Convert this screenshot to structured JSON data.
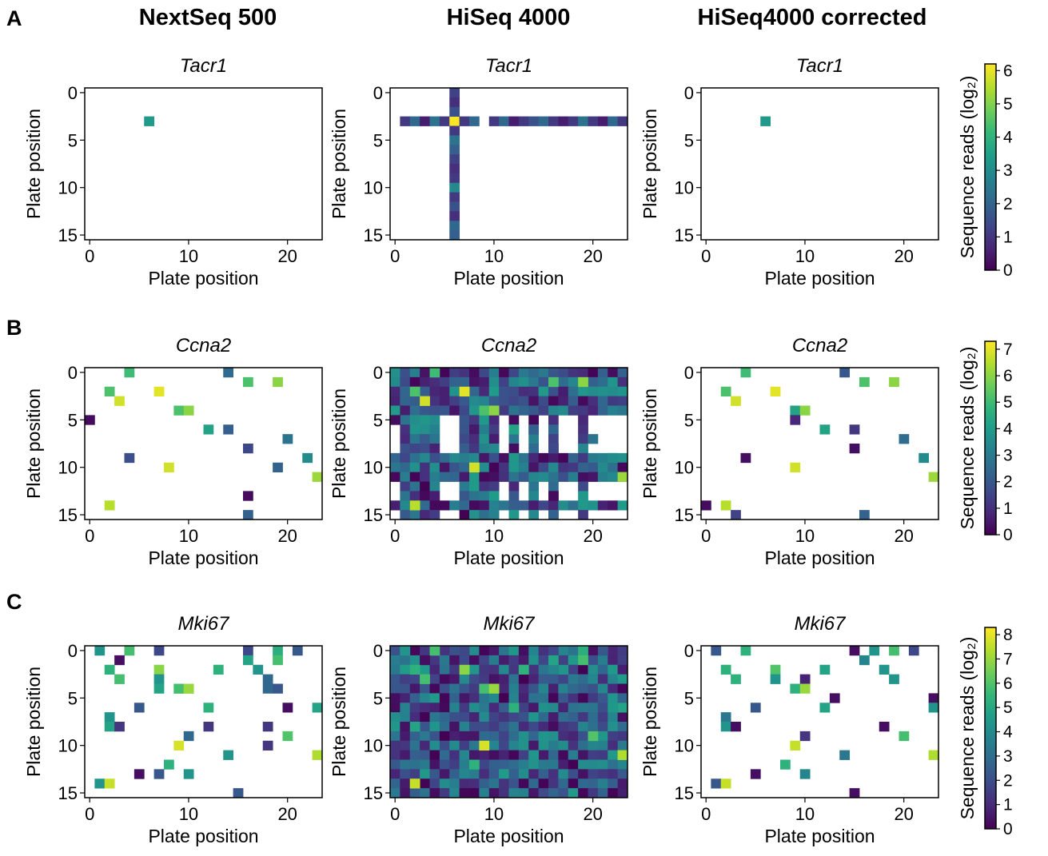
{
  "panel_letters": [
    "A",
    "B",
    "C"
  ],
  "column_titles": [
    "NextSeq 500",
    "HiSeq 4000",
    "HiSeq4000 corrected"
  ],
  "colorbar_label": "Sequence reads (log₂)",
  "colormap": [
    "#440154",
    "#482878",
    "#3e4989",
    "#31688e",
    "#26828e",
    "#1f9e89",
    "#35b779",
    "#6ece58",
    "#b5de2b",
    "#fde725"
  ],
  "chart_data": [
    {
      "type": "heatmap",
      "panel": "A",
      "column": "NextSeq 500",
      "title": "Tacr1",
      "xlabel": "Plate position",
      "ylabel": "Plate position",
      "xlim": [
        0,
        23
      ],
      "ylim": [
        15,
        0
      ],
      "xticks": [
        0,
        10,
        20
      ],
      "yticks": [
        0,
        5,
        10,
        15
      ],
      "vmin": 0,
      "vmax": 6,
      "cells": [
        [
          6,
          3,
          3.2
        ]
      ]
    },
    {
      "type": "heatmap",
      "panel": "A",
      "column": "HiSeq 4000",
      "title": "Tacr1",
      "xlabel": "Plate position",
      "ylabel": "Plate position",
      "xlim": [
        0,
        23
      ],
      "ylim": [
        15,
        0
      ],
      "xticks": [
        0,
        10,
        20
      ],
      "yticks": [
        0,
        5,
        10,
        15
      ],
      "vmin": 0,
      "vmax": 6,
      "cells": [
        [
          1,
          3,
          1.0
        ],
        [
          2,
          3,
          2.0
        ],
        [
          3,
          3,
          0.5
        ],
        [
          4,
          3,
          2.3
        ],
        [
          5,
          3,
          1.0
        ],
        [
          6,
          3,
          6.0
        ],
        [
          7,
          3,
          1.0
        ],
        [
          8,
          3,
          2.0
        ],
        [
          10,
          3,
          1.0
        ],
        [
          11,
          3,
          2.0
        ],
        [
          12,
          3,
          0.5
        ],
        [
          13,
          3,
          1.0
        ],
        [
          14,
          3,
          1.5
        ],
        [
          15,
          3,
          2.0
        ],
        [
          16,
          3,
          1.0
        ],
        [
          17,
          3,
          0.5
        ],
        [
          18,
          3,
          1.0
        ],
        [
          19,
          3,
          2.3
        ],
        [
          20,
          3,
          1.0
        ],
        [
          21,
          3,
          0.5
        ],
        [
          22,
          3,
          2.0
        ],
        [
          23,
          3,
          1.0
        ],
        [
          6,
          0,
          1.2
        ],
        [
          6,
          1,
          0.8
        ],
        [
          6,
          2,
          1.5
        ],
        [
          6,
          4,
          1.0
        ],
        [
          6,
          5,
          2.3
        ],
        [
          6,
          6,
          1.8
        ],
        [
          6,
          7,
          1.2
        ],
        [
          6,
          8,
          0.8
        ],
        [
          6,
          9,
          1.0
        ],
        [
          6,
          10,
          2.8
        ],
        [
          6,
          11,
          1.0
        ],
        [
          6,
          12,
          1.5
        ],
        [
          6,
          13,
          0.8
        ],
        [
          6,
          14,
          2.0
        ],
        [
          6,
          15,
          1.8
        ]
      ]
    },
    {
      "type": "heatmap",
      "panel": "A",
      "column": "HiSeq4000 corrected",
      "title": "Tacr1",
      "xlabel": "Plate position",
      "ylabel": "Plate position",
      "xlim": [
        0,
        23
      ],
      "ylim": [
        15,
        0
      ],
      "xticks": [
        0,
        10,
        20
      ],
      "yticks": [
        0,
        5,
        10,
        15
      ],
      "vmin": 0,
      "vmax": 6,
      "cells": [
        [
          6,
          3,
          3.2
        ]
      ]
    },
    {
      "type": "heatmap",
      "panel": "B",
      "column": "NextSeq 500",
      "title": "Ccna2",
      "xlabel": "Plate position",
      "ylabel": "Plate position",
      "xlim": [
        0,
        23
      ],
      "ylim": [
        15,
        0
      ],
      "xticks": [
        0,
        10,
        20
      ],
      "yticks": [
        0,
        5,
        10,
        15
      ],
      "vmin": 0,
      "vmax": 7.3,
      "cells": [
        [
          4,
          0,
          5.0
        ],
        [
          14,
          0,
          2.5
        ],
        [
          16,
          1,
          5.2
        ],
        [
          19,
          1,
          6.0
        ],
        [
          2,
          2,
          5.2
        ],
        [
          7,
          2,
          7.0
        ],
        [
          3,
          3,
          6.8
        ],
        [
          9,
          4,
          5.2
        ],
        [
          10,
          4,
          6.0
        ],
        [
          0,
          5,
          0.2
        ],
        [
          12,
          6,
          4.2
        ],
        [
          14,
          6,
          2.2
        ],
        [
          16,
          8,
          1.6
        ],
        [
          20,
          7,
          2.8
        ],
        [
          4,
          9,
          1.8
        ],
        [
          22,
          9,
          3.5
        ],
        [
          8,
          10,
          6.8
        ],
        [
          19,
          10,
          2.3
        ],
        [
          23,
          11,
          6.2
        ],
        [
          16,
          13,
          0.2
        ],
        [
          2,
          14,
          6.5
        ],
        [
          16,
          15,
          2.3
        ]
      ]
    },
    {
      "type": "heatmap",
      "panel": "B",
      "column": "HiSeq 4000",
      "title": "Ccna2",
      "xlabel": "Plate position",
      "ylabel": "Plate position",
      "xlim": [
        0,
        23
      ],
      "ylim": [
        15,
        0
      ],
      "xticks": [
        0,
        10,
        20
      ],
      "yticks": [
        0,
        5,
        10,
        15
      ],
      "vmin": 0,
      "vmax": 7.3,
      "cells": [
        [
          4,
          0,
          5.0
        ],
        [
          14,
          0,
          2.5
        ],
        [
          16,
          1,
          5.2
        ],
        [
          19,
          1,
          6.0
        ],
        [
          2,
          2,
          5.2
        ],
        [
          7,
          2,
          7.0
        ],
        [
          3,
          3,
          6.8
        ],
        [
          9,
          4,
          5.2
        ],
        [
          10,
          4,
          6.0
        ],
        [
          0,
          5,
          0.2
        ],
        [
          12,
          6,
          4.2
        ],
        [
          14,
          6,
          2.2
        ],
        [
          16,
          8,
          1.6
        ],
        [
          20,
          7,
          2.8
        ],
        [
          4,
          9,
          1.8
        ],
        [
          22,
          9,
          3.5
        ],
        [
          8,
          10,
          6.8
        ],
        [
          19,
          10,
          2.3
        ],
        [
          23,
          11,
          6.2
        ],
        [
          16,
          13,
          0.2
        ],
        [
          2,
          14,
          6.5
        ],
        [
          16,
          15,
          2.3
        ]
      ],
      "row_background": [
        0,
        1,
        2,
        3,
        4,
        9,
        10,
        11,
        14
      ],
      "col_background": [
        1,
        2,
        3,
        4,
        7,
        8,
        9,
        10,
        12,
        14,
        16,
        19
      ]
    },
    {
      "type": "heatmap",
      "panel": "B",
      "column": "HiSeq4000 corrected",
      "title": "Ccna2",
      "xlabel": "Plate position",
      "ylabel": "Plate position",
      "xlim": [
        0,
        23
      ],
      "ylim": [
        15,
        0
      ],
      "xticks": [
        0,
        10,
        20
      ],
      "yticks": [
        0,
        5,
        10,
        15
      ],
      "vmin": 0,
      "vmax": 7.3,
      "cells": [
        [
          4,
          0,
          5.0
        ],
        [
          14,
          0,
          2.0
        ],
        [
          16,
          1,
          5.2
        ],
        [
          19,
          1,
          6.0
        ],
        [
          2,
          2,
          5.2
        ],
        [
          7,
          2,
          7.0
        ],
        [
          3,
          3,
          6.8
        ],
        [
          9,
          4,
          4.2
        ],
        [
          10,
          4,
          6.0
        ],
        [
          9,
          5,
          0.8
        ],
        [
          12,
          6,
          4.2
        ],
        [
          15,
          6,
          1.2
        ],
        [
          20,
          7,
          2.6
        ],
        [
          15,
          8,
          0.3
        ],
        [
          4,
          9,
          0.3
        ],
        [
          22,
          9,
          3.5
        ],
        [
          9,
          10,
          6.8
        ],
        [
          23,
          11,
          6.2
        ],
        [
          0,
          14,
          0.2
        ],
        [
          2,
          14,
          6.5
        ],
        [
          3,
          15,
          1.5
        ],
        [
          16,
          15,
          2.3
        ]
      ]
    },
    {
      "type": "heatmap",
      "panel": "C",
      "column": "NextSeq 500",
      "title": "Mki67",
      "xlabel": "Plate position",
      "ylabel": "Plate position",
      "xlim": [
        0,
        23
      ],
      "ylim": [
        15,
        0
      ],
      "xticks": [
        0,
        10,
        20
      ],
      "yticks": [
        0,
        5,
        10,
        15
      ],
      "vmin": 0,
      "vmax": 8.3,
      "cells": [
        [
          1,
          0,
          4.3
        ],
        [
          4,
          0,
          5.8
        ],
        [
          7,
          0,
          1.8
        ],
        [
          16,
          0,
          1.8
        ],
        [
          19,
          0,
          5.2
        ],
        [
          21,
          0,
          2.3
        ],
        [
          3,
          1,
          0.3
        ],
        [
          16,
          1,
          4.8
        ],
        [
          19,
          1,
          5.8
        ],
        [
          2,
          2,
          5.3
        ],
        [
          7,
          2,
          6.8
        ],
        [
          13,
          2,
          5.3
        ],
        [
          17,
          2,
          4.3
        ],
        [
          3,
          3,
          5.8
        ],
        [
          7,
          3,
          4.3
        ],
        [
          18,
          3,
          2.8
        ],
        [
          9,
          4,
          5.8
        ],
        [
          9,
          4,
          5.8
        ],
        [
          10,
          4,
          7.0
        ],
        [
          7,
          4,
          4.8
        ],
        [
          10,
          4,
          7.0
        ],
        [
          18,
          4,
          2.8
        ],
        [
          19,
          4,
          2.3
        ],
        [
          5,
          6,
          2.3
        ],
        [
          12,
          6,
          5.3
        ],
        [
          20,
          6,
          0.3
        ],
        [
          23,
          6,
          4.8
        ],
        [
          2,
          7,
          4.3
        ],
        [
          2,
          8,
          4.8
        ],
        [
          3,
          8,
          1.3
        ],
        [
          12,
          8,
          1.3
        ],
        [
          18,
          8,
          1.3
        ],
        [
          10,
          9,
          2.8
        ],
        [
          20,
          9,
          6.0
        ],
        [
          9,
          10,
          7.8
        ],
        [
          18,
          10,
          1.3
        ],
        [
          14,
          11,
          4.3
        ],
        [
          8,
          12,
          5.3
        ],
        [
          7,
          13,
          2.3
        ],
        [
          5,
          13,
          0.3
        ],
        [
          10,
          13,
          4.3
        ],
        [
          23,
          11,
          7.3
        ],
        [
          1,
          14,
          4.3
        ],
        [
          2,
          14,
          7.6
        ],
        [
          15,
          15,
          2.3
        ]
      ]
    },
    {
      "type": "heatmap",
      "panel": "C",
      "column": "HiSeq 4000",
      "title": "Mki67",
      "xlabel": "Plate position",
      "ylabel": "Plate position",
      "xlim": [
        0,
        23
      ],
      "ylim": [
        15,
        0
      ],
      "xticks": [
        0,
        10,
        20
      ],
      "yticks": [
        0,
        5,
        10,
        15
      ],
      "vmin": 0,
      "vmax": 8.3,
      "cells": [
        [
          1,
          0,
          4.3
        ],
        [
          4,
          0,
          5.8
        ],
        [
          7,
          0,
          1.8
        ],
        [
          16,
          0,
          1.8
        ],
        [
          19,
          0,
          5.2
        ],
        [
          21,
          0,
          2.3
        ],
        [
          3,
          1,
          0.3
        ],
        [
          16,
          1,
          4.8
        ],
        [
          19,
          1,
          5.8
        ],
        [
          2,
          2,
          5.3
        ],
        [
          7,
          2,
          6.8
        ],
        [
          13,
          2,
          5.3
        ],
        [
          17,
          2,
          4.3
        ],
        [
          3,
          3,
          5.8
        ],
        [
          9,
          4,
          5.8
        ],
        [
          10,
          4,
          7.0
        ],
        [
          18,
          4,
          2.8
        ],
        [
          12,
          6,
          5.3
        ],
        [
          23,
          6,
          4.8
        ],
        [
          2,
          8,
          4.8
        ],
        [
          20,
          9,
          6.0
        ],
        [
          9,
          10,
          7.8
        ],
        [
          14,
          11,
          4.3
        ],
        [
          8,
          12,
          5.3
        ],
        [
          23,
          11,
          7.3
        ],
        [
          2,
          14,
          7.6
        ]
      ],
      "row_background": [
        0,
        1,
        2,
        3,
        4,
        5,
        6,
        7,
        8,
        9,
        10,
        11,
        12,
        13,
        14,
        15
      ],
      "col_background": [
        0,
        1,
        2,
        3,
        4,
        5,
        6,
        7,
        8,
        9,
        10,
        11,
        12,
        13,
        14,
        15,
        16,
        17,
        18,
        19,
        20,
        21,
        22,
        23
      ]
    },
    {
      "type": "heatmap",
      "panel": "C",
      "column": "HiSeq4000 corrected",
      "title": "Mki67",
      "xlabel": "Plate position",
      "ylabel": "Plate position",
      "xlim": [
        0,
        23
      ],
      "ylim": [
        15,
        0
      ],
      "xticks": [
        0,
        10,
        20
      ],
      "yticks": [
        0,
        5,
        10,
        15
      ],
      "vmin": 0,
      "vmax": 8.3,
      "cells": [
        [
          1,
          0,
          2.3
        ],
        [
          4,
          0,
          5.3
        ],
        [
          15,
          0,
          0.3
        ],
        [
          17,
          0,
          4.3
        ],
        [
          19,
          0,
          5.8
        ],
        [
          21,
          0,
          1.8
        ],
        [
          16,
          1,
          3.8
        ],
        [
          2,
          2,
          5.3
        ],
        [
          7,
          2,
          6.0
        ],
        [
          12,
          2,
          4.8
        ],
        [
          18,
          2,
          4.3
        ],
        [
          3,
          3,
          5.3
        ],
        [
          7,
          3,
          4.3
        ],
        [
          10,
          3,
          0.8
        ],
        [
          9,
          4,
          5.3
        ],
        [
          10,
          4,
          7.0
        ],
        [
          19,
          3,
          4.3
        ],
        [
          13,
          5,
          0.3
        ],
        [
          23,
          5,
          0.3
        ],
        [
          5,
          6,
          2.3
        ],
        [
          12,
          6,
          4.8
        ],
        [
          23,
          6,
          4.3
        ],
        [
          2,
          7,
          3.3
        ],
        [
          2,
          8,
          4.3
        ],
        [
          3,
          8,
          0.3
        ],
        [
          18,
          8,
          0.3
        ],
        [
          10,
          9,
          1.3
        ],
        [
          20,
          9,
          5.8
        ],
        [
          9,
          10,
          7.6
        ],
        [
          14,
          11,
          3.3
        ],
        [
          8,
          12,
          5.3
        ],
        [
          5,
          13,
          0.3
        ],
        [
          10,
          13,
          3.8
        ],
        [
          23,
          11,
          7.3
        ],
        [
          1,
          14,
          2.3
        ],
        [
          2,
          14,
          7.6
        ],
        [
          15,
          15,
          0.3
        ]
      ]
    }
  ]
}
